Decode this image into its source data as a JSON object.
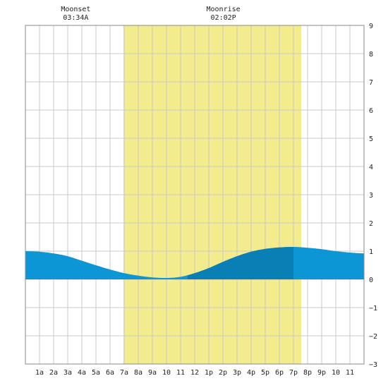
{
  "chart_data": {
    "type": "area",
    "title": "",
    "xlabel": "",
    "ylabel": "",
    "xlim": [
      0,
      24
    ],
    "ylim": [
      -3,
      9
    ],
    "grid": true,
    "x_tick_labels": [
      "1a",
      "2a",
      "3a",
      "4a",
      "5a",
      "6a",
      "7a",
      "8a",
      "9a",
      "10",
      "11",
      "12",
      "1p",
      "2p",
      "3p",
      "4p",
      "5p",
      "6p",
      "7p",
      "8p",
      "9p",
      "10",
      "11"
    ],
    "y_tick_values": [
      -3,
      -2,
      -1,
      0,
      1,
      2,
      3,
      4,
      5,
      6,
      7,
      8,
      9
    ],
    "daylight": {
      "start": 6.95,
      "end": 19.55
    },
    "dark_segment": {
      "start": 11.5,
      "end": 19.0
    },
    "moon_events": [
      {
        "name": "Moonset",
        "time": "03:34A",
        "hour": 3.57
      },
      {
        "name": "Moonrise",
        "time": "02:02P",
        "hour": 14.03
      }
    ],
    "series": [
      {
        "x": [
          0,
          1,
          2,
          3,
          4,
          5,
          6,
          7,
          8,
          9,
          10,
          11,
          12,
          13,
          14,
          15,
          16,
          17,
          18,
          19,
          20,
          21,
          22,
          23,
          24
        ],
        "values": [
          1.0,
          0.98,
          0.92,
          0.82,
          0.66,
          0.5,
          0.35,
          0.22,
          0.13,
          0.07,
          0.05,
          0.09,
          0.22,
          0.4,
          0.62,
          0.82,
          0.98,
          1.08,
          1.13,
          1.15,
          1.12,
          1.07,
          1.0,
          0.95,
          0.92
        ]
      }
    ],
    "colors": {
      "background": "#ffffff",
      "grid": "#c8c8c8",
      "daylight": "#f3ec8c",
      "tide": "#0d96d6",
      "tide_dark": "#0a7fb6",
      "axis": "#888888"
    }
  }
}
